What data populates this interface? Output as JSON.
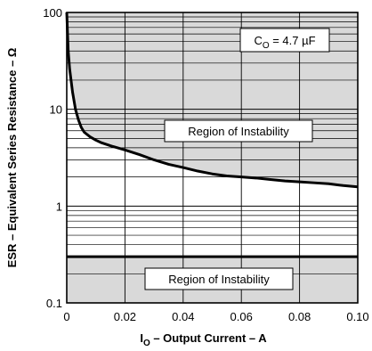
{
  "chart_data": {
    "type": "line",
    "xlabel": {
      "main": "I",
      "sub": "O",
      "rest": " – Output Current – A"
    },
    "ylabel": "ESR – Equivalent Series Resistance – Ω",
    "xlim": [
      0,
      0.1
    ],
    "ylim": [
      0.1,
      100
    ],
    "yscale": "log",
    "grid": true,
    "x_tick_labels": [
      "0",
      "0.02",
      "0.04",
      "0.06",
      "0.08",
      "0.10"
    ],
    "x_ticks": [
      0,
      0.02,
      0.04,
      0.06,
      0.08,
      0.1
    ],
    "y_tick_labels": [
      "0.1",
      "1",
      "10",
      "100"
    ],
    "y_ticks": [
      0.1,
      1,
      10,
      100
    ],
    "annotation": {
      "main": "C",
      "sub": "O",
      "rest": " = 4.7 µF"
    },
    "regions": [
      {
        "label": "Region of Instability",
        "kind": "above-curve",
        "fill": "#d9d9d9"
      },
      {
        "label": "Region of Instability",
        "kind": "below-esr",
        "y_max": 0.3,
        "fill": "#d9d9d9"
      }
    ],
    "series": [
      {
        "x": [
          0,
          0.0005,
          0.001,
          0.002,
          0.003,
          0.004,
          0.005,
          0.006,
          0.008,
          0.01,
          0.012,
          0.015,
          0.02,
          0.025,
          0.03,
          0.035,
          0.04,
          0.045,
          0.05,
          0.055,
          0.06,
          0.065,
          0.07,
          0.075,
          0.08,
          0.085,
          0.09,
          0.095,
          0.1
        ],
        "y": [
          100,
          40,
          26,
          15,
          10,
          7.8,
          6.5,
          5.8,
          5.2,
          4.8,
          4.5,
          4.2,
          3.8,
          3.4,
          3.0,
          2.7,
          2.5,
          2.3,
          2.15,
          2.05,
          2.0,
          1.95,
          1.88,
          1.82,
          1.78,
          1.74,
          1.7,
          1.63,
          1.58
        ]
      },
      {
        "x": [
          0,
          0.1
        ],
        "y": [
          0.3,
          0.3
        ]
      }
    ]
  }
}
